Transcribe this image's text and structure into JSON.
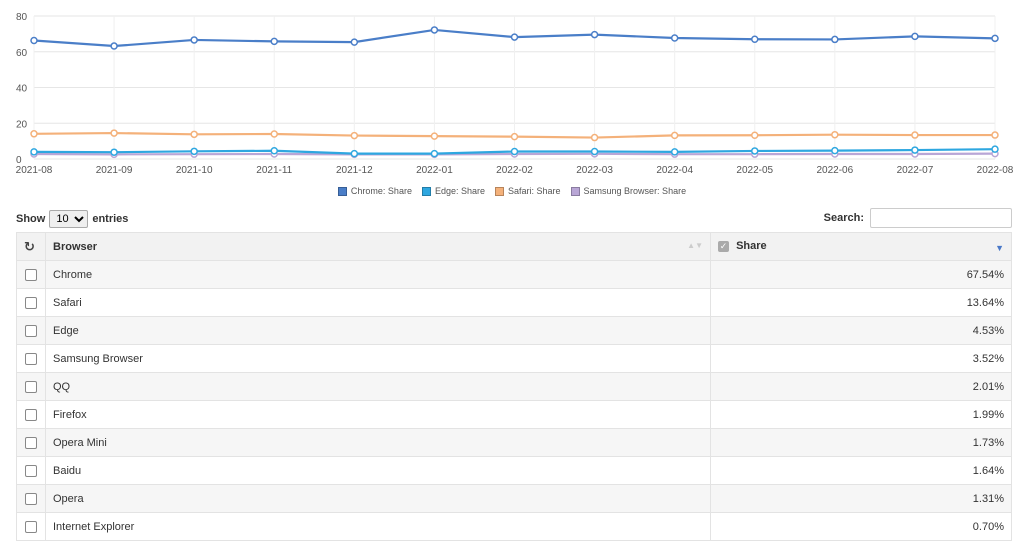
{
  "chart_data": {
    "type": "line",
    "categories": [
      "2021-08",
      "2021-09",
      "2021-10",
      "2021-11",
      "2021-12",
      "2022-01",
      "2022-02",
      "2022-03",
      "2022-04",
      "2022-05",
      "2022-06",
      "2022-07",
      "2022-08"
    ],
    "ylim": [
      0,
      80
    ],
    "yticks": [
      "80",
      "60",
      "40",
      "20",
      "0"
    ],
    "grid": true,
    "legend_position": "bottom",
    "series": [
      {
        "name": "Chrome: Share",
        "color": "#4a7ec8",
        "values": [
          66.3,
          63.2,
          66.6,
          65.8,
          65.4,
          72.2,
          68.2,
          69.6,
          67.7,
          67.0,
          66.9,
          68.6,
          67.5
        ]
      },
      {
        "name": "Edge: Share",
        "color": "#2ea7e0",
        "values": [
          4.0,
          3.8,
          4.3,
          4.6,
          3.0,
          3.0,
          4.2,
          4.2,
          4.0,
          4.5,
          4.7,
          5.0,
          5.5
        ]
      },
      {
        "name": "Safari: Share",
        "color": "#f4b17a",
        "values": [
          14.1,
          14.5,
          13.8,
          14.0,
          13.1,
          12.8,
          12.5,
          12.0,
          13.2,
          13.3,
          13.6,
          13.4,
          13.4
        ]
      },
      {
        "name": "Samsung Browser: Share",
        "color": "#b9a6d6",
        "values": [
          2.8,
          2.6,
          2.7,
          2.8,
          2.6,
          2.6,
          2.8,
          2.9,
          2.7,
          2.7,
          2.8,
          2.8,
          3.0
        ]
      }
    ]
  },
  "controls": {
    "show_label": "Show",
    "entries_value": "10",
    "entries_label": "entries",
    "search_label": "Search:"
  },
  "table": {
    "header_browser": "Browser",
    "header_share": "Share",
    "rows": [
      {
        "browser": "Chrome",
        "share": "67.54%"
      },
      {
        "browser": "Safari",
        "share": "13.64%"
      },
      {
        "browser": "Edge",
        "share": "4.53%"
      },
      {
        "browser": "Samsung Browser",
        "share": "3.52%"
      },
      {
        "browser": "QQ",
        "share": "2.01%"
      },
      {
        "browser": "Firefox",
        "share": "1.99%"
      },
      {
        "browser": "Opera Mini",
        "share": "1.73%"
      },
      {
        "browser": "Baidu",
        "share": "1.64%"
      },
      {
        "browser": "Opera",
        "share": "1.31%"
      },
      {
        "browser": "Internet Explorer",
        "share": "0.70%"
      }
    ]
  }
}
